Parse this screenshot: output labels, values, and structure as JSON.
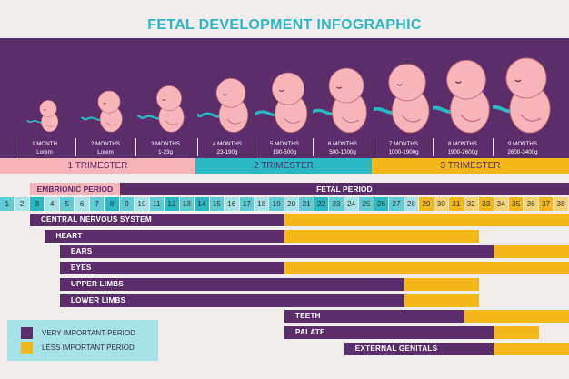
{
  "title": "FETAL DEVELOPMENT INFOGRAPHIC",
  "colors": {
    "purple": "#5b2d6b",
    "yellow": "#f3b719",
    "teal": "#2bb8c5",
    "pink": "#f7b4b9",
    "light_teal": "#a6e3e9"
  },
  "stages": [
    {
      "month": "1 MONTH",
      "weight": "Lorem"
    },
    {
      "month": "2 MONTHS",
      "weight": "Lorem"
    },
    {
      "month": "3 MONTHS",
      "weight": "1-23g"
    },
    {
      "month": "4 MONTHS",
      "weight": "23-190g"
    },
    {
      "month": "5 MONTHS",
      "weight": "190-500g"
    },
    {
      "month": "6 MONTHS",
      "weight": "500-1000g"
    },
    {
      "month": "7 MONTHS",
      "weight": "1000-1900g"
    },
    {
      "month": "8 MONTHS",
      "weight": "1900-2600g"
    },
    {
      "month": "9 MONTHS",
      "weight": "2600-3400g"
    }
  ],
  "trimesters": [
    "1 TRIMESTER",
    "2 TRIMESTER",
    "3 TRIMESTER"
  ],
  "periods": {
    "embryonic": "EMBRIONIC PERIOD",
    "fetal": "FETAL PERIOD"
  },
  "weeks": [
    "1",
    "2",
    "3",
    "4",
    "5",
    "6",
    "7",
    "8",
    "9",
    "10",
    "11",
    "12",
    "13",
    "14",
    "15",
    "16",
    "17",
    "18",
    "19",
    "20",
    "21",
    "22",
    "23",
    "24",
    "25",
    "26",
    "27",
    "28",
    "29",
    "30",
    "31",
    "32",
    "33",
    "34",
    "35",
    "36",
    "37",
    "38"
  ],
  "organs": [
    {
      "name": "CENTRAL NERVOUS SYSTEM",
      "very_important_weeks": [
        3,
        20
      ],
      "less_important_weeks": [
        20,
        38
      ]
    },
    {
      "name": "HEART",
      "very_important_weeks": [
        4,
        20
      ],
      "less_important_weeks": [
        20,
        32
      ]
    },
    {
      "name": "EARS",
      "very_important_weeks": [
        5,
        34
      ],
      "less_important_weeks": [
        34,
        38
      ]
    },
    {
      "name": "EYES",
      "very_important_weeks": [
        5,
        20
      ],
      "less_important_weeks": [
        20,
        38
      ]
    },
    {
      "name": "UPPER LIMBS",
      "very_important_weeks": [
        5,
        28
      ],
      "less_important_weeks": [
        28,
        32
      ]
    },
    {
      "name": "LOWER LIMBS",
      "very_important_weeks": [
        5,
        28
      ],
      "less_important_weeks": [
        28,
        32
      ]
    },
    {
      "name": "TEETH",
      "very_important_weeks": [
        20,
        32
      ],
      "less_important_weeks": [
        32,
        38
      ]
    },
    {
      "name": "PALATE",
      "very_important_weeks": [
        20,
        34
      ],
      "less_important_weeks": [
        34,
        36
      ]
    },
    {
      "name": "EXTERNAL GENITALS",
      "very_important_weeks": [
        24,
        34
      ],
      "less_important_weeks": [
        34,
        38
      ]
    }
  ],
  "legend": {
    "very": "VERY IMPORTANT PERIOD",
    "less": "LESS IMPORTANT PERIOD"
  }
}
